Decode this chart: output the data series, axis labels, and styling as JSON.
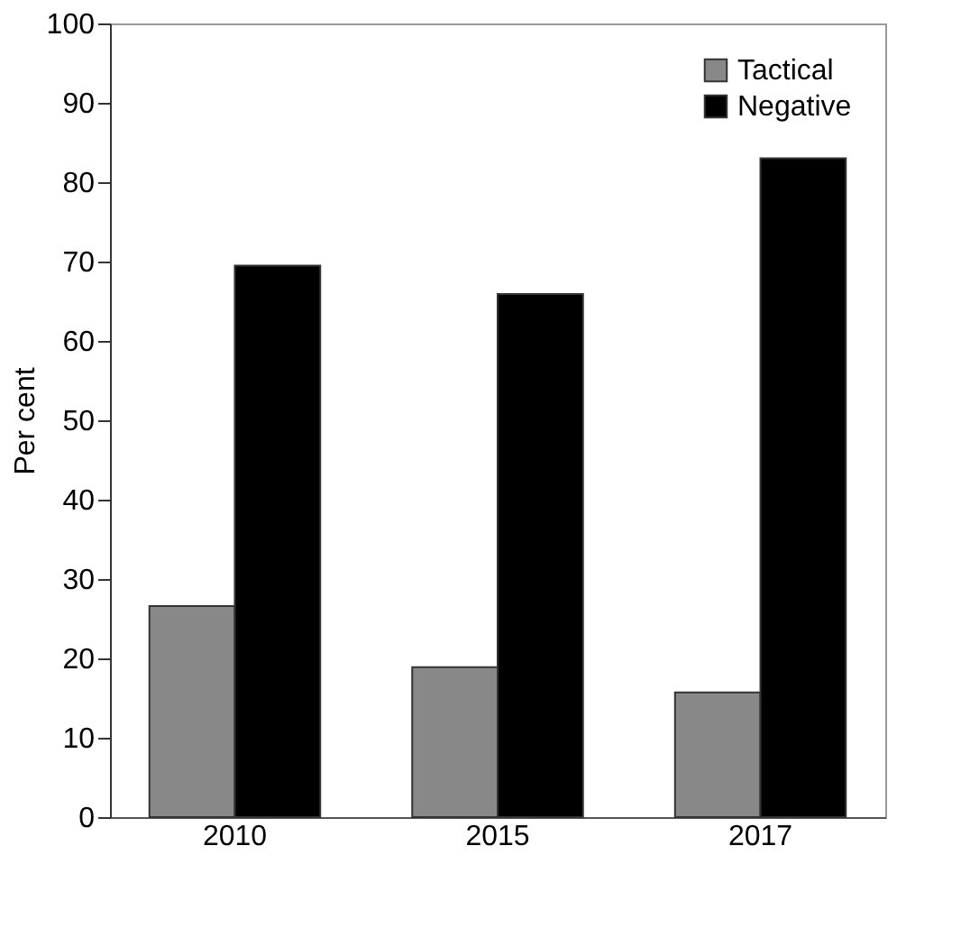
{
  "chart_data": {
    "type": "bar",
    "ylabel": "Per cent",
    "categories": [
      "2010",
      "2015",
      "2017"
    ],
    "series": [
      {
        "name": "Tactical",
        "color": "#888888",
        "values": [
          26.6,
          18.9,
          15.7
        ]
      },
      {
        "name": "Negative",
        "color": "#000000",
        "values": [
          69.5,
          65.9,
          83.0
        ]
      }
    ],
    "ylim": [
      0,
      100
    ],
    "yticks": [
      0,
      10,
      20,
      30,
      40,
      50,
      60,
      70,
      80,
      90,
      100
    ],
    "grid": false,
    "legend": "top right"
  }
}
